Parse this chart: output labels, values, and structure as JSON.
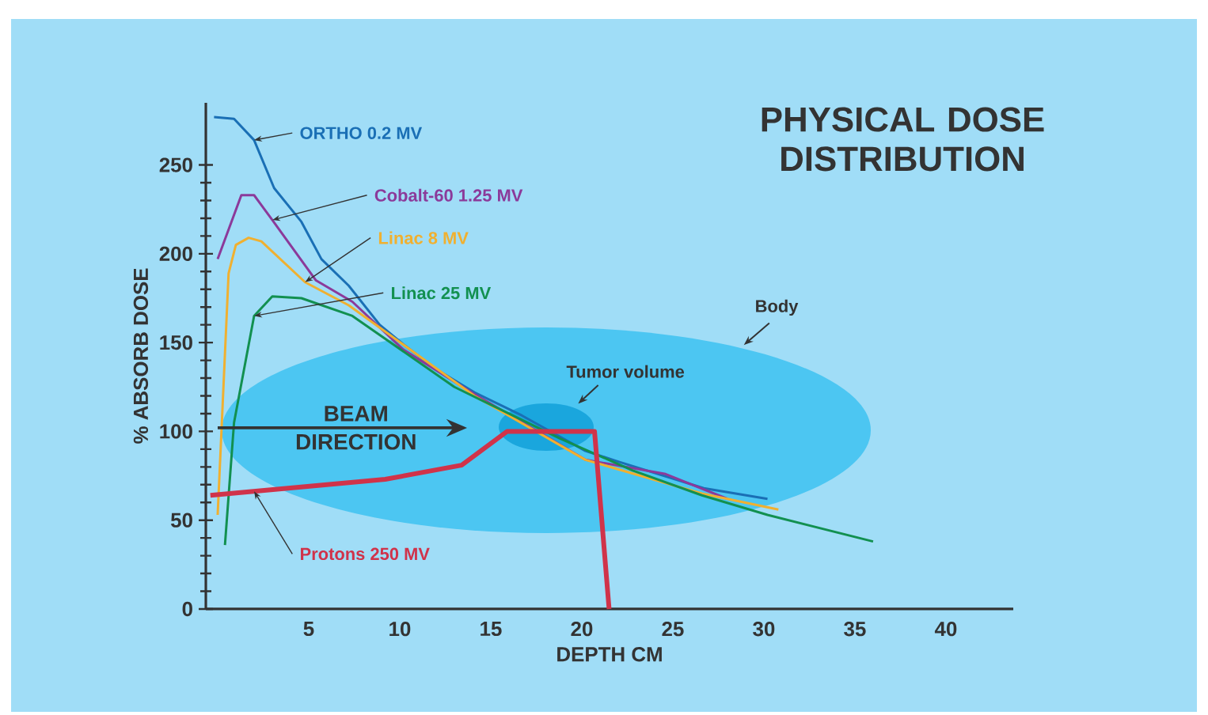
{
  "chart_data": {
    "type": "line",
    "title": "PHYSICAL DOSE DISTRIBUTION",
    "xlabel": "DEPTH CM",
    "ylabel": "% ABSORB DOSE",
    "xlim": [
      -0.65,
      43.7
    ],
    "ylim": [
      0,
      285
    ],
    "xticks": [
      5,
      10,
      15,
      20,
      25,
      30,
      35,
      40
    ],
    "yticks": [
      0,
      50,
      100,
      150,
      200,
      250
    ],
    "annotations": [
      "BEAM DIRECTION",
      "Tumor volume",
      "Body"
    ],
    "series": [
      {
        "name": "ORTHO  0.2 MV",
        "color": "#1a6fb5",
        "x": [
          -0.2,
          0.9,
          2,
          3.1,
          4.6,
          5.7,
          7.2,
          8.9,
          10.2,
          12,
          14.1,
          16.7,
          20.2,
          22,
          26.7,
          30.2
        ],
        "values": [
          277,
          276,
          264,
          237,
          218,
          197,
          182,
          160,
          149,
          135,
          122,
          109,
          89,
          83,
          68,
          62
        ]
      },
      {
        "name": "Cobalt-60  1.25 MV",
        "color": "#8b3a9a",
        "x": [
          0,
          1.3,
          2,
          3,
          5.4,
          7.4,
          10.2,
          14.1,
          20.2,
          24.6,
          28
        ],
        "values": [
          197,
          233,
          233,
          219,
          185,
          173,
          146,
          121,
          84,
          76,
          62
        ]
      },
      {
        "name": "Linac  8 MV",
        "color": "#f0b030",
        "x": [
          0,
          0.6,
          1,
          1.7,
          2.4,
          4.8,
          7.2,
          14.1,
          20.2,
          26.6,
          30.8
        ],
        "values": [
          53,
          189,
          205,
          209,
          207,
          184,
          171,
          120,
          84,
          65,
          56
        ]
      },
      {
        "name": "Linac  25 MV",
        "color": "#129050",
        "x": [
          0.4,
          0.9,
          2,
          3,
          4.6,
          7.4,
          13,
          18.8,
          22.8,
          26.6,
          30.2,
          36
        ],
        "values": [
          36,
          105,
          165,
          176,
          175,
          165,
          125,
          96,
          78,
          64,
          53,
          38
        ]
      },
      {
        "name": "Protons  250 MV",
        "color": "#d0334a",
        "x": [
          -0.4,
          9.2,
          13.4,
          15.9,
          20.7,
          21.5
        ],
        "values": [
          64,
          73,
          81,
          100,
          100,
          0
        ]
      }
    ]
  }
}
